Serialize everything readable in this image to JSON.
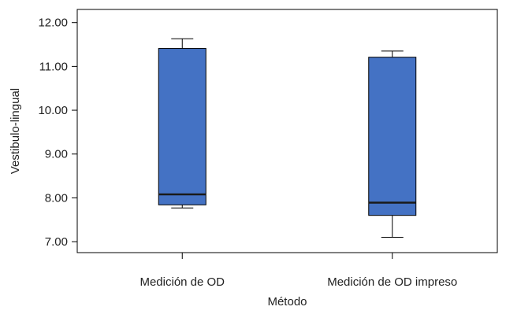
{
  "chart_data": {
    "type": "boxplot",
    "title": "",
    "xlabel": "Método",
    "ylabel": "Vestibulo-lingual",
    "ylim": [
      6.75,
      12.3
    ],
    "yticks": [
      "7.00",
      "8.00",
      "9.00",
      "10.00",
      "11.00",
      "12.00"
    ],
    "grid": false,
    "categories": [
      "Medición de OD",
      "Medición de OD impreso"
    ],
    "boxes": [
      {
        "category": "Medición de OD",
        "min": 7.77,
        "q1": 7.84,
        "median": 8.08,
        "q3": 11.41,
        "max": 11.63
      },
      {
        "category": "Medición de OD impreso",
        "min": 7.1,
        "q1": 7.6,
        "median": 7.89,
        "q3": 11.21,
        "max": 11.35
      }
    ],
    "colors": {
      "box_fill": "#4472c4",
      "median_line": "#1a1a1a",
      "frame": "#000000"
    }
  }
}
